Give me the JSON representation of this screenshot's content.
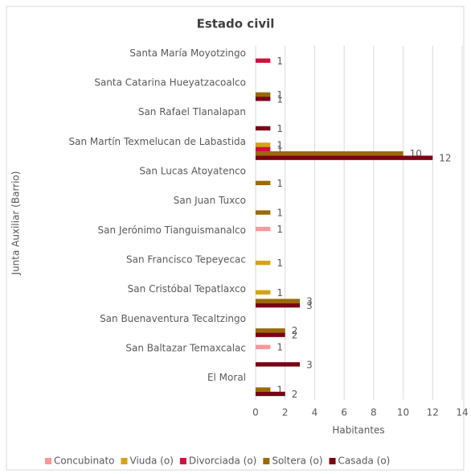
{
  "chart_data": {
    "type": "hbar",
    "title": "Estado civil",
    "x_label": "Habitantes",
    "y_label": "Junta Auxiliar (Barrio)",
    "categories": [
      "Santa María Moyotzingo",
      "Santa Catarina Hueyatzacoalco",
      "San Rafael Tlanalapan",
      "San Martín Texmelucan de Labastida",
      "San Lucas Atoyatenco",
      "San Juan Tuxco",
      "San Jerónimo Tianguismanalco",
      "San Francisco Tepeyecac",
      "San Cristóbal Tepatlaxco",
      "San Buenaventura Tecaltzingo",
      "San Baltazar Temaxcalac",
      "El Moral"
    ],
    "series": [
      {
        "name": "Concubinato",
        "color": "#f4999c",
        "values": [
          null,
          null,
          null,
          null,
          null,
          null,
          1,
          null,
          null,
          null,
          1,
          null
        ]
      },
      {
        "name": "Viuda (o)",
        "color": "#d4a412",
        "values": [
          null,
          null,
          null,
          1,
          null,
          null,
          null,
          1,
          1,
          null,
          null,
          null
        ]
      },
      {
        "name": "Divorciada (o)",
        "color": "#d1103c",
        "values": [
          1,
          null,
          null,
          1,
          null,
          null,
          null,
          null,
          null,
          null,
          null,
          null
        ]
      },
      {
        "name": "Soltera (o)",
        "color": "#9a6a05",
        "values": [
          null,
          1,
          null,
          10,
          1,
          1,
          null,
          null,
          3,
          2,
          null,
          1
        ]
      },
      {
        "name": "Casada (o)",
        "color": "#7a0014",
        "values": [
          null,
          1,
          1,
          12,
          null,
          null,
          null,
          null,
          3,
          2,
          3,
          2
        ]
      }
    ],
    "xlim": [
      0,
      14
    ],
    "xticks": [
      0,
      2,
      4,
      6,
      8,
      10,
      12,
      14
    ],
    "grid": true,
    "legend": "bottom"
  }
}
